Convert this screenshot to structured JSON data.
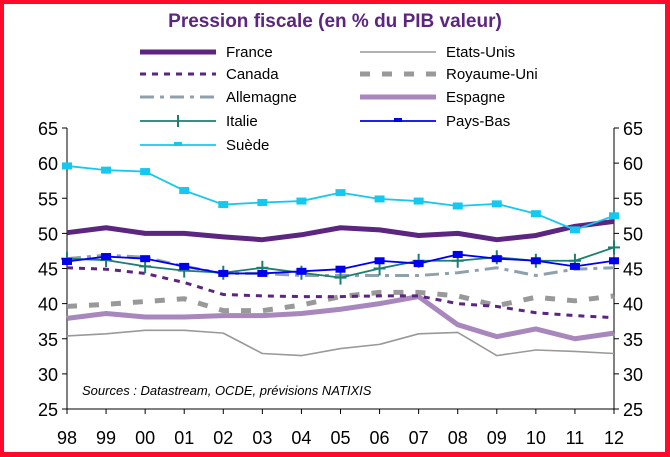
{
  "chart_data": {
    "type": "line",
    "title": "Pression fiscale (en % du PIB valeur)",
    "xlabel": "",
    "ylabel": "",
    "x": [
      "98",
      "99",
      "00",
      "01",
      "02",
      "03",
      "04",
      "05",
      "06",
      "07",
      "08",
      "09",
      "10",
      "11",
      "12"
    ],
    "ylim": [
      25,
      65
    ],
    "yticks": [
      25,
      30,
      35,
      40,
      45,
      50,
      55,
      60,
      65
    ],
    "y_axis_sides": "left-and-right",
    "grid": false,
    "legend_position": "top",
    "annotation": "Sources : Datastream, OCDE, prévisions NATIXIS",
    "series": [
      {
        "name": "France",
        "color": "#5b2580",
        "style": "thick-solid",
        "values": [
          50.1,
          50.8,
          50.0,
          50.0,
          49.5,
          49.1,
          49.8,
          50.8,
          50.5,
          49.7,
          50.0,
          49.1,
          49.7,
          51.0,
          51.7
        ]
      },
      {
        "name": "Etats-Unis",
        "color": "#999999",
        "style": "thin-solid",
        "values": [
          35.4,
          35.7,
          36.2,
          36.2,
          35.8,
          32.9,
          32.6,
          33.6,
          34.2,
          35.7,
          35.9,
          32.6,
          33.4,
          33.2,
          32.9
        ]
      },
      {
        "name": "Canada",
        "color": "#5b2580",
        "style": "dotted",
        "values": [
          45.1,
          44.9,
          44.3,
          43.0,
          41.3,
          41.1,
          41.0,
          41.0,
          41.1,
          41.1,
          40.0,
          39.6,
          38.7,
          38.3,
          38.0
        ]
      },
      {
        "name": "Royaume-Uni",
        "color": "#999999",
        "style": "dashed",
        "values": [
          39.6,
          39.9,
          40.3,
          40.7,
          39.0,
          39.0,
          39.8,
          41.0,
          41.6,
          41.6,
          41.1,
          39.7,
          40.9,
          40.4,
          41.1
        ]
      },
      {
        "name": "Allemagne",
        "color": "#8ea1ad",
        "style": "dash-dot",
        "values": [
          46.4,
          46.9,
          46.6,
          45.3,
          44.3,
          44.3,
          44.0,
          44.0,
          44.0,
          44.0,
          44.4,
          45.1,
          44.0,
          44.9,
          45.1
        ]
      },
      {
        "name": "Espagne",
        "color": "#a887bd",
        "style": "thick-solid",
        "values": [
          37.9,
          38.6,
          38.1,
          38.1,
          38.3,
          38.3,
          38.6,
          39.2,
          40.0,
          41.0,
          37.0,
          35.3,
          36.4,
          35.0,
          35.8
        ]
      },
      {
        "name": "Italie",
        "color": "#1a7f70",
        "style": "solid-cross-markers",
        "values": [
          46.4,
          46.2,
          45.3,
          44.7,
          44.4,
          45.1,
          44.4,
          43.7,
          45.0,
          46.1,
          46.1,
          46.6,
          46.1,
          46.1,
          48.0
        ]
      },
      {
        "name": "Pays-Bas",
        "color": "#0000ee",
        "style": "solid-square-markers",
        "values": [
          46.0,
          46.7,
          46.4,
          45.3,
          44.3,
          44.3,
          44.6,
          44.9,
          46.1,
          45.7,
          47.0,
          46.4,
          46.1,
          45.3,
          46.1
        ]
      },
      {
        "name": "Suède",
        "color": "#15c8f0",
        "style": "solid-square-markers",
        "values": [
          59.6,
          59.0,
          58.8,
          56.1,
          54.1,
          54.4,
          54.6,
          55.8,
          54.9,
          54.6,
          53.9,
          54.2,
          52.8,
          50.5,
          52.5
        ]
      }
    ]
  }
}
